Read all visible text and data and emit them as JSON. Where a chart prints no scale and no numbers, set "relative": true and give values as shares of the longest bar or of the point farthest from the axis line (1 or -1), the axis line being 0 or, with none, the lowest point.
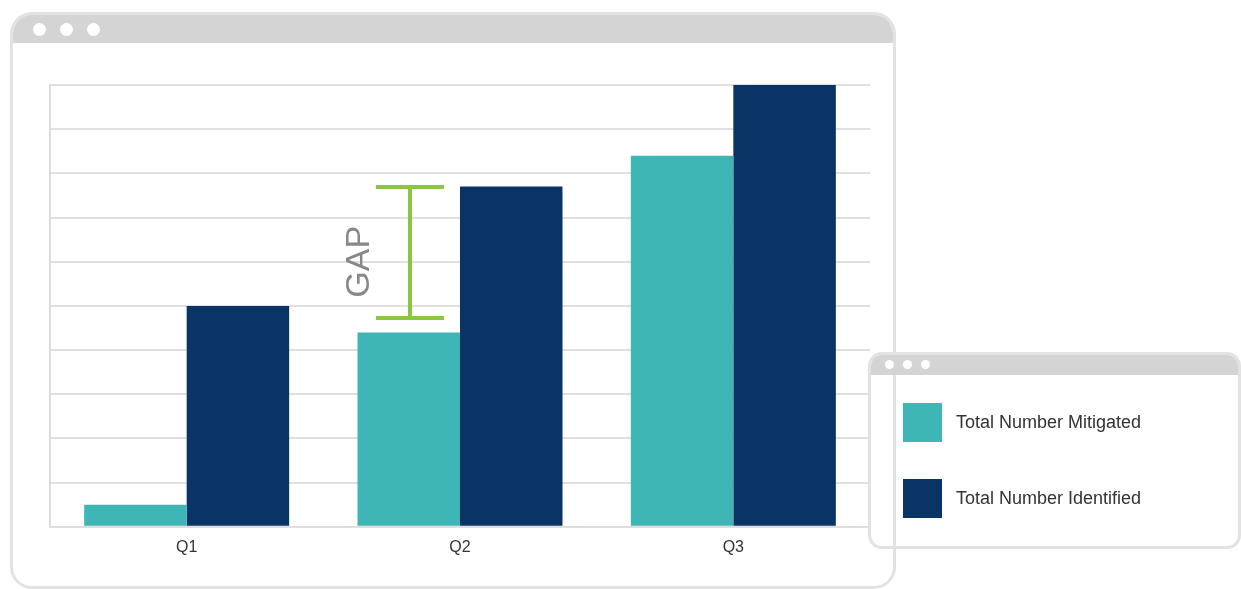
{
  "chart_data": {
    "type": "bar",
    "categories": [
      "Q1",
      "Q2",
      "Q3"
    ],
    "relative": true,
    "grid": "y",
    "legend": "right",
    "series": [
      {
        "name": "Total Number Mitigated",
        "color": "#3db6b5",
        "values": [
          0.05,
          0.44,
          0.84
        ]
      },
      {
        "name": "Total Number Identified",
        "color": "#0a3366",
        "values": [
          0.5,
          0.77,
          1
        ]
      }
    ],
    "annotations": [
      {
        "text": "GAP",
        "x": "Q2",
        "y": 0.6
      }
    ]
  }
}
